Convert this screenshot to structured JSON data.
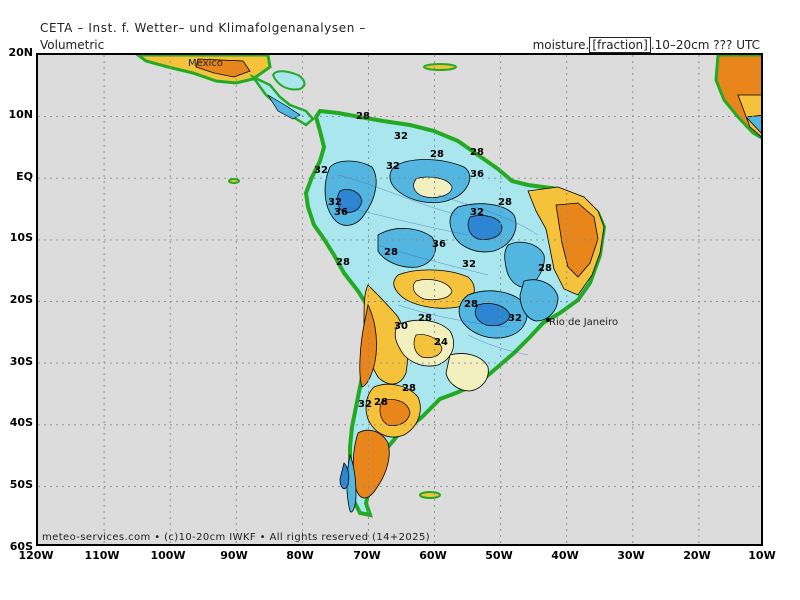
{
  "header": {
    "title": "CETA – Inst. f. Wetter– und Klimafolgenanalysen –",
    "left_label": "Volumetric",
    "right_prefix": "moisture.",
    "right_bracket": "[fraction]",
    "right_suffix": ".10–20cm ??? UTC"
  },
  "axes": {
    "lat_labels": [
      "20N",
      "10N",
      "EQ",
      "10S",
      "20S",
      "30S",
      "40S",
      "50S",
      "60S"
    ],
    "lon_labels": [
      "120W",
      "110W",
      "100W",
      "90W",
      "80W",
      "70W",
      "60W",
      "50W",
      "40W",
      "30W",
      "20W",
      "10W"
    ]
  },
  "places": {
    "city": "Rio de Janeiro",
    "mexico_fragment": "Mexico"
  },
  "contour_labels": [
    "28",
    "32",
    "32",
    "28",
    "32",
    "36",
    "28",
    "36",
    "28",
    "36",
    "32",
    "28",
    "28",
    "32",
    "28",
    "30",
    "24",
    "28",
    "32",
    "32",
    "28",
    "28",
    "28",
    "32"
  ],
  "footer": "meteo-services.com • (c)10-20cm IWKF • All rights reserved (14+2025)",
  "colors": {
    "ocean": "#dcdcdc",
    "very_dry": "#e8861c",
    "dry": "#f5c23c",
    "moderate": "#f3f0c0",
    "moist": "#a9e6ee",
    "wet": "#52b6e0",
    "very_wet": "#2e86d2",
    "coast_fringe": "#22aa22"
  }
}
